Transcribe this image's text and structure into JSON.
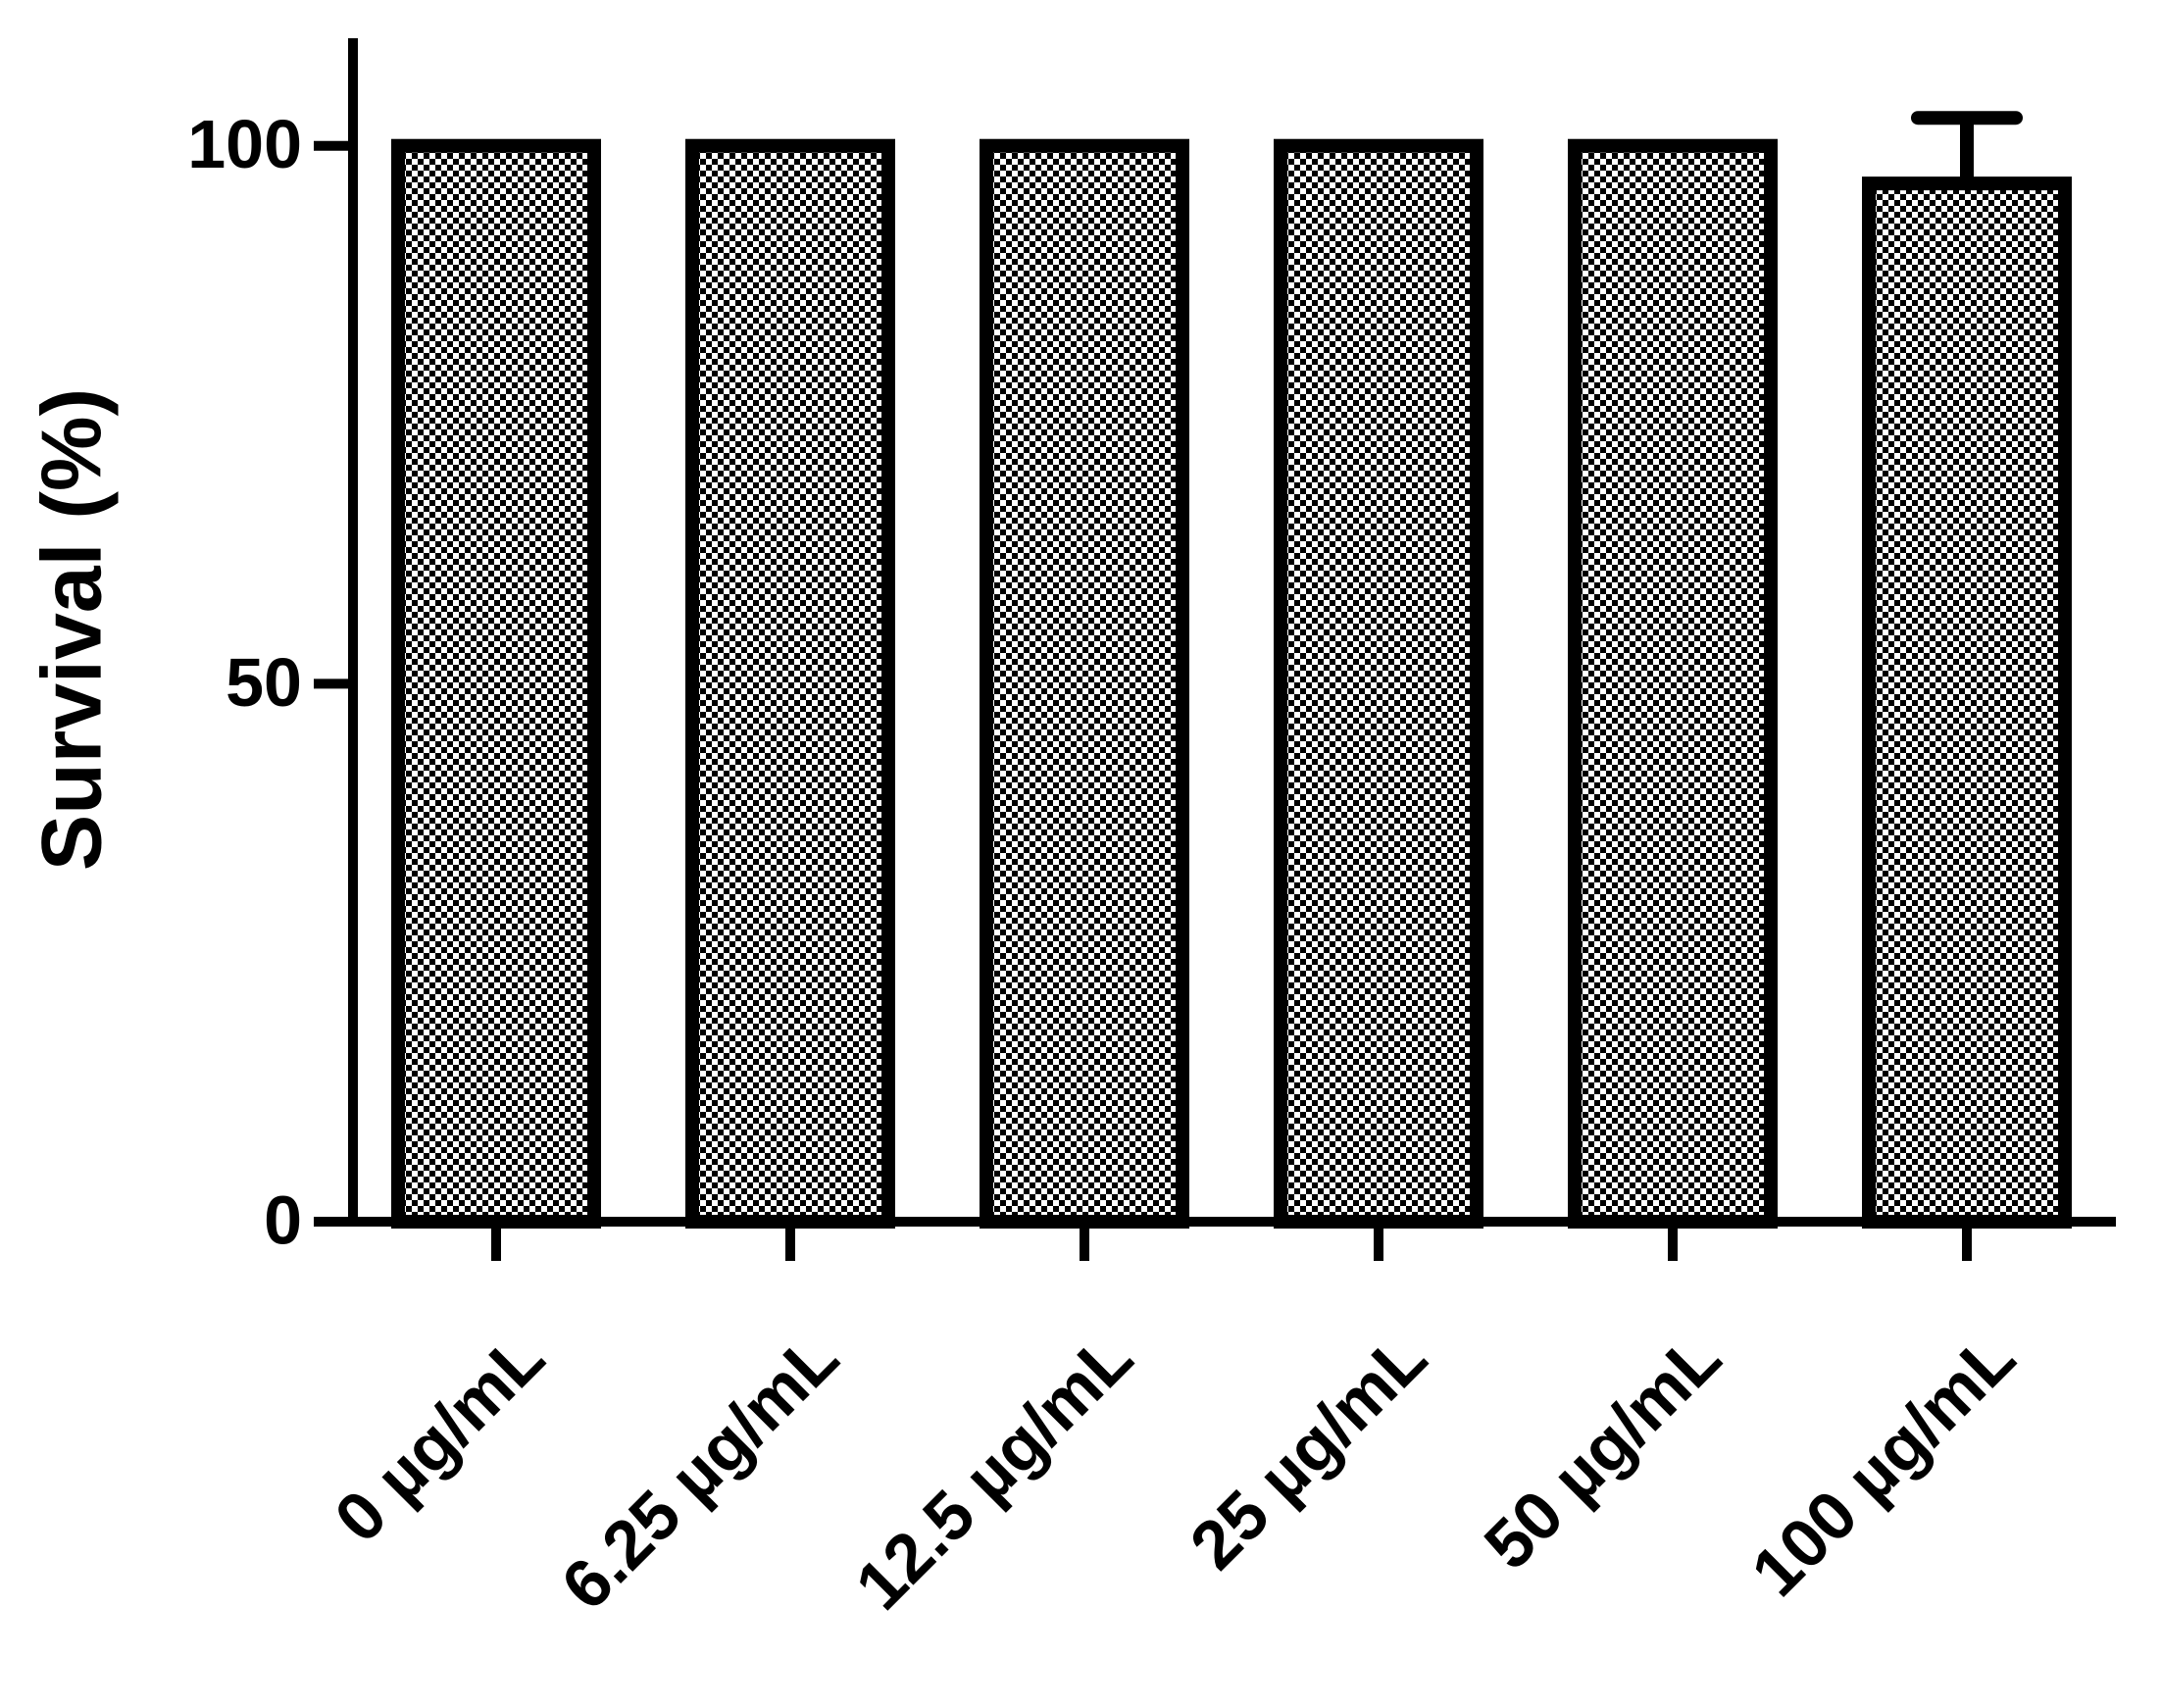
{
  "chart_data": {
    "type": "bar",
    "y_label": "Survival (%)",
    "categories": [
      "0 µg/mL",
      "6.25 µg/mL",
      "12.5 µg/mL",
      "25 µg/mL",
      "50 µg/mL",
      "100 µg/mL"
    ],
    "values": [
      100,
      100,
      100,
      100,
      100,
      96.5
    ],
    "errors": [
      0,
      0,
      0,
      0,
      0,
      6.1
    ],
    "color": "#000000",
    "ylim": [
      0,
      110
    ],
    "yticks": [
      0,
      50,
      100
    ],
    "grid": false
  }
}
